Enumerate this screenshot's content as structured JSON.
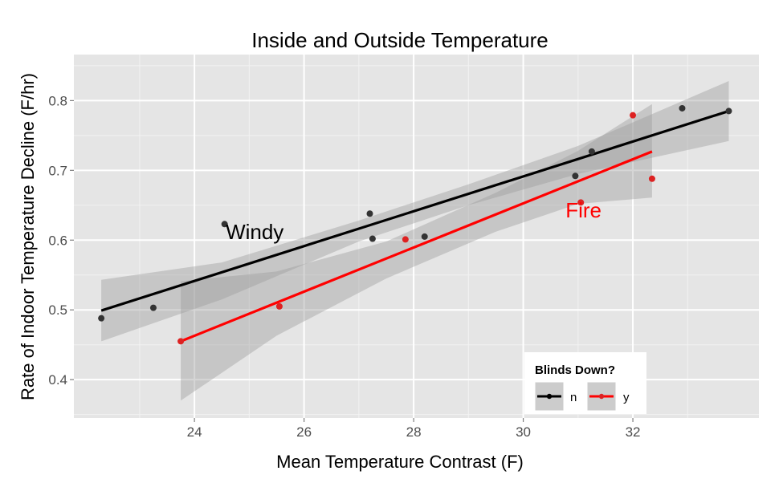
{
  "chart_data": {
    "type": "scatter",
    "title": "Inside and Outside Temperature",
    "xlabel": "Mean Temperature Contrast (F)",
    "ylabel": "Rate of Indoor Temperature Decline (F/hr)",
    "xlim": [
      21.8,
      34.3
    ],
    "ylim": [
      0.345,
      0.866
    ],
    "x_ticks": [
      24,
      26,
      28,
      30,
      32
    ],
    "y_ticks": [
      0.4,
      0.5,
      0.6,
      0.7,
      0.8
    ],
    "x_tick_labels": [
      "24",
      "26",
      "28",
      "30",
      "32"
    ],
    "y_tick_labels": [
      "0.4",
      "0.5",
      "0.6",
      "0.7",
      "0.8"
    ],
    "grid": true,
    "legend": {
      "title": "Blinds Down?",
      "position": "bottom-right",
      "entries": [
        "n",
        "y"
      ]
    },
    "series": [
      {
        "name": "n",
        "color": "#000000",
        "point_color": "#333333",
        "points": [
          {
            "x": 22.3,
            "y": 0.488
          },
          {
            "x": 23.25,
            "y": 0.503
          },
          {
            "x": 24.55,
            "y": 0.623
          },
          {
            "x": 27.2,
            "y": 0.638
          },
          {
            "x": 27.25,
            "y": 0.602
          },
          {
            "x": 28.2,
            "y": 0.605
          },
          {
            "x": 30.95,
            "y": 0.692
          },
          {
            "x": 31.25,
            "y": 0.727
          },
          {
            "x": 32.9,
            "y": 0.789
          },
          {
            "x": 33.75,
            "y": 0.785
          }
        ],
        "fit": {
          "x": [
            22.3,
            33.75
          ],
          "y": [
            0.499,
            0.785
          ]
        },
        "band": {
          "x": [
            22.3,
            24.5,
            27.0,
            29.0,
            31.0,
            33.75
          ],
          "lower": [
            0.455,
            0.515,
            0.598,
            0.65,
            0.695,
            0.742
          ],
          "upper": [
            0.543,
            0.568,
            0.628,
            0.68,
            0.735,
            0.828
          ]
        }
      },
      {
        "name": "y",
        "color": "#ff0000",
        "point_color": "#dd2222",
        "points": [
          {
            "x": 23.75,
            "y": 0.455
          },
          {
            "x": 25.55,
            "y": 0.505
          },
          {
            "x": 27.85,
            "y": 0.601
          },
          {
            "x": 31.05,
            "y": 0.654
          },
          {
            "x": 32.0,
            "y": 0.779
          },
          {
            "x": 32.35,
            "y": 0.688
          }
        ],
        "fit": {
          "x": [
            23.75,
            32.35
          ],
          "y": [
            0.455,
            0.727
          ]
        },
        "band": {
          "x": [
            23.75,
            25.5,
            27.5,
            29.5,
            31.0,
            32.35
          ],
          "lower": [
            0.37,
            0.463,
            0.545,
            0.612,
            0.652,
            0.661
          ],
          "upper": [
            0.541,
            0.555,
            0.598,
            0.668,
            0.728,
            0.795
          ]
        }
      }
    ],
    "annotations": [
      {
        "text": "Windy",
        "x": 25.1,
        "y": 0.612,
        "color": "#000000"
      },
      {
        "text": "Fire",
        "x": 31.1,
        "y": 0.643,
        "color": "#ff0000"
      }
    ]
  }
}
